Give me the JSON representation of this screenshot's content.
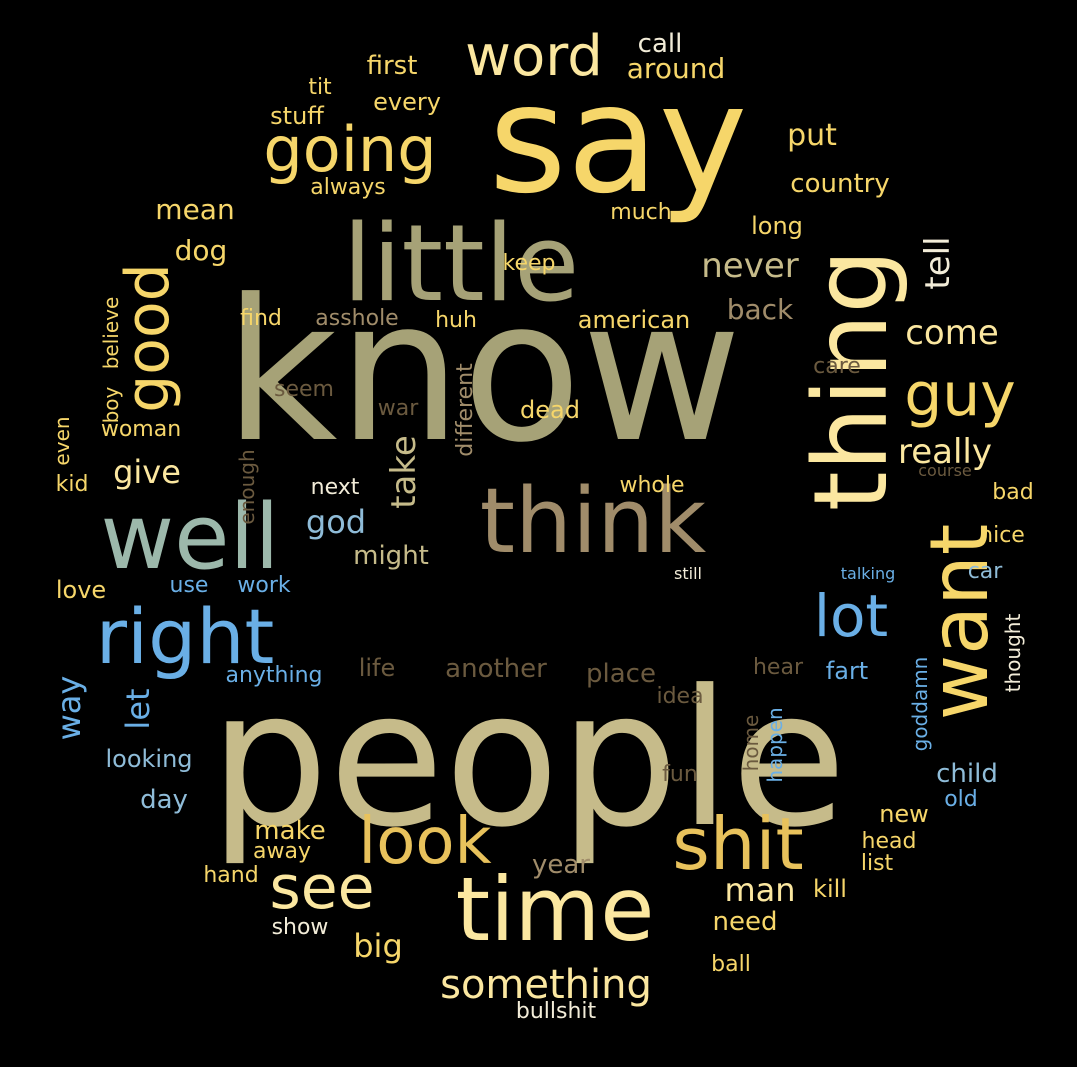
{
  "colors": {
    "background": "#000000",
    "olive": "#a6a277",
    "khaki": "#c6bb8a",
    "yellow": "#f6d66a",
    "pale": "#fbe7a0",
    "gold": "#e8c25c",
    "tan": "#a08c6a",
    "sage": "#9cb8ab",
    "blue": "#6aafe6",
    "lightblue": "#8fbcd8",
    "brown": "#6b5a3f",
    "white": "#f2ecd8"
  },
  "words": [
    "know",
    "people",
    "say",
    "little",
    "thing",
    "think",
    "well",
    "right",
    "time",
    "want",
    "shit",
    "good",
    "going",
    "word",
    "look",
    "see",
    "guy",
    "lot",
    "something",
    "come",
    "take",
    "really",
    "never",
    "tell",
    "give",
    "let",
    "god",
    "way",
    "man",
    "big",
    "first",
    "call",
    "around",
    "put",
    "country",
    "mean",
    "dog",
    "long",
    "much",
    "keep",
    "back",
    "find",
    "asshole",
    "huh",
    "american",
    "believe",
    "boy",
    "even",
    "woman",
    "kid",
    "seem",
    "war",
    "dead",
    "different",
    "care",
    "enough",
    "next",
    "might",
    "whole",
    "course",
    "bad",
    "nice",
    "car",
    "use",
    "work",
    "love",
    "still",
    "talking",
    "anything",
    "life",
    "another",
    "place",
    "hear",
    "fart",
    "idea",
    "thought",
    "goddamn",
    "home",
    "happen",
    "looking",
    "day",
    "fun",
    "child",
    "old",
    "make",
    "away",
    "new",
    "head",
    "list",
    "year",
    "hand",
    "kill",
    "need",
    "show",
    "ball",
    "bullshit",
    "tit",
    "every",
    "stuff",
    "always"
  ]
}
